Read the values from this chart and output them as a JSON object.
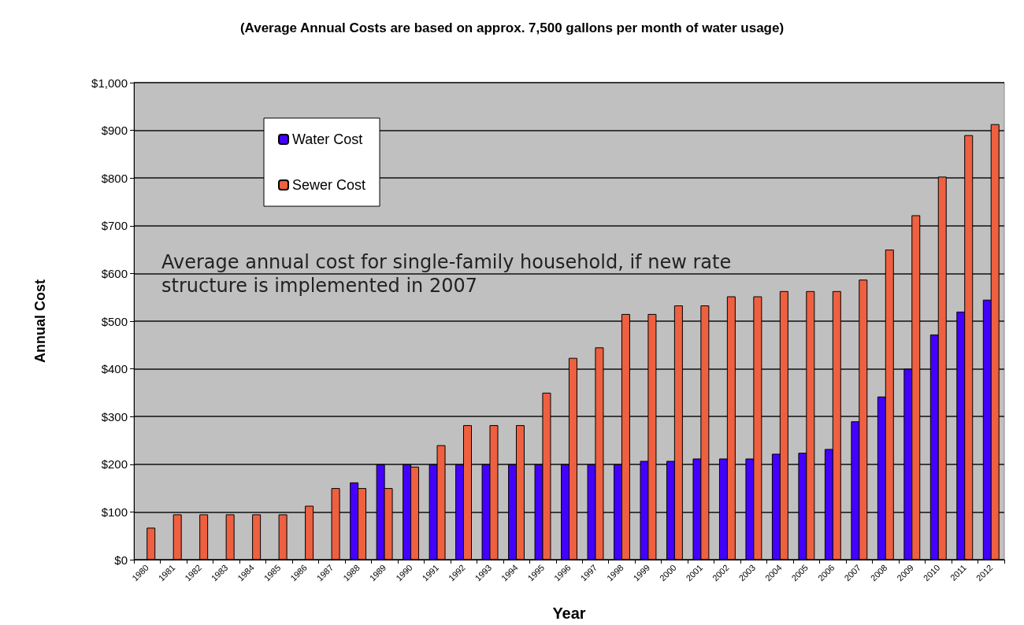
{
  "chart_data": {
    "type": "bar",
    "title": "(Average Annual Costs are based on approx. 7,500 gallons per month of water usage)",
    "xlabel": "Year",
    "ylabel": "Annual Cost",
    "categories": [
      "1980",
      "1981",
      "1982",
      "1983",
      "1984",
      "1985",
      "1986",
      "1987",
      "1988",
      "1989",
      "1990",
      "1991",
      "1992",
      "1993",
      "1994",
      "1995",
      "1996",
      "1997",
      "1998",
      "1999",
      "2000",
      "2001",
      "2002",
      "2003",
      "2004",
      "2005",
      "2006",
      "2007",
      "2008",
      "2009",
      "2010",
      "2011",
      "2012"
    ],
    "series": [
      {
        "name": "Water Cost",
        "color": "#4400ff",
        "values": [
          null,
          null,
          null,
          null,
          null,
          null,
          null,
          null,
          162,
          200,
          200,
          200,
          200,
          200,
          200,
          200,
          200,
          200,
          200,
          207,
          207,
          212,
          212,
          212,
          222,
          224,
          232,
          290,
          342,
          400,
          472,
          520,
          545
        ]
      },
      {
        "name": "Sewer Cost",
        "color": "#ee6040",
        "values": [
          67,
          95,
          95,
          95,
          95,
          95,
          113,
          150,
          150,
          150,
          195,
          240,
          282,
          282,
          282,
          350,
          423,
          445,
          515,
          515,
          533,
          533,
          552,
          552,
          563,
          563,
          563,
          587,
          650,
          722,
          803,
          890,
          913
        ]
      }
    ],
    "ylim": [
      0,
      1000
    ],
    "yticks": [
      {
        "value": 0,
        "label": "$0"
      },
      {
        "value": 100,
        "label": "$100"
      },
      {
        "value": 200,
        "label": "$200"
      },
      {
        "value": 300,
        "label": "$300"
      },
      {
        "value": 400,
        "label": "$400"
      },
      {
        "value": 500,
        "label": "$500"
      },
      {
        "value": 600,
        "label": "$600"
      },
      {
        "value": 700,
        "label": "$700"
      },
      {
        "value": 800,
        "label": "$800"
      },
      {
        "value": 900,
        "label": "$900"
      },
      {
        "value": 1000,
        "label": "$1,000"
      }
    ],
    "grid": "y",
    "legend": "top left",
    "annotations": [
      "Average annual cost for single-family household, if new rate structure is implemented in 2007"
    ]
  }
}
